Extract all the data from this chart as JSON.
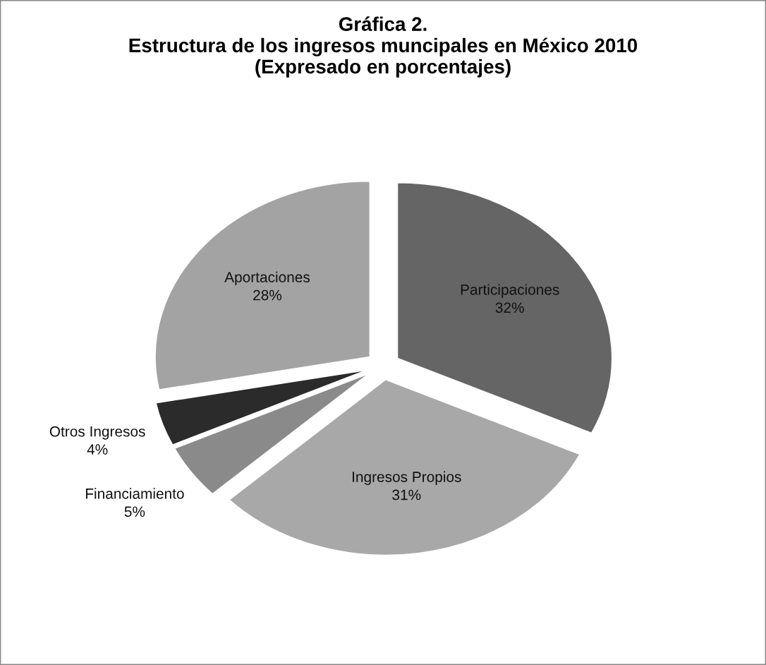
{
  "chart_data": {
    "type": "pie",
    "title": "Gráfica 2.\nEstructura de los ingresos muncipales en México 2010\n(Expresado en porcentajes)",
    "categories": [
      "Participaciones",
      "Ingresos Propios",
      "Financiamiento",
      "Otros Ingresos",
      "Aportaciones"
    ],
    "values": [
      32,
      31,
      5,
      4,
      28
    ],
    "value_labels": [
      "32%",
      "31%",
      "5%",
      "4%",
      "28%"
    ],
    "colors": [
      "#656565",
      "#a8a8a8",
      "#8a8a8a",
      "#2b2b2b",
      "#a3a3a3"
    ]
  }
}
